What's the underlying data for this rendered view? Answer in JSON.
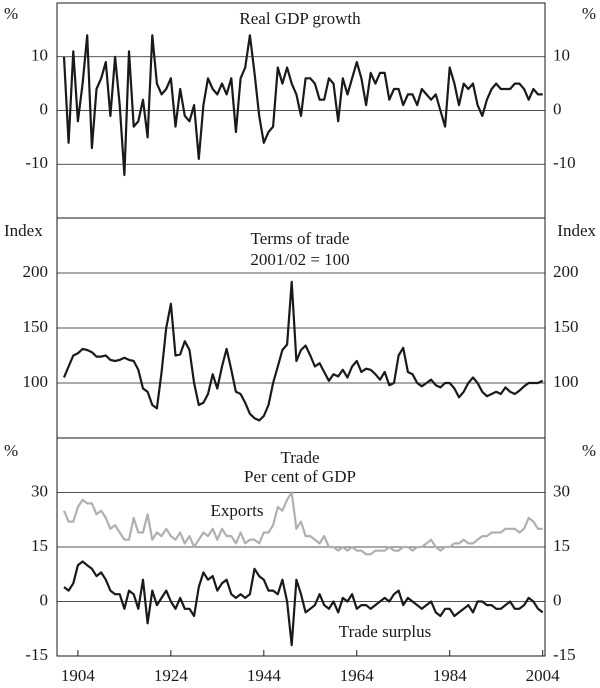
{
  "chart_data": [
    {
      "type": "line",
      "title": "Real GDP growth",
      "y_unit": "%",
      "x": [
        1901,
        1902,
        1903,
        1904,
        1905,
        1906,
        1907,
        1908,
        1909,
        1910,
        1911,
        1912,
        1913,
        1914,
        1915,
        1916,
        1917,
        1918,
        1919,
        1920,
        1921,
        1922,
        1923,
        1924,
        1925,
        1926,
        1927,
        1928,
        1929,
        1930,
        1931,
        1932,
        1933,
        1934,
        1935,
        1936,
        1937,
        1938,
        1939,
        1940,
        1941,
        1942,
        1943,
        1944,
        1945,
        1946,
        1947,
        1948,
        1949,
        1950,
        1951,
        1952,
        1953,
        1954,
        1955,
        1956,
        1957,
        1958,
        1959,
        1960,
        1961,
        1962,
        1963,
        1964,
        1965,
        1966,
        1967,
        1968,
        1969,
        1970,
        1971,
        1972,
        1973,
        1974,
        1975,
        1976,
        1977,
        1978,
        1979,
        1980,
        1981,
        1982,
        1983,
        1984,
        1985,
        1986,
        1987,
        1988,
        1989,
        1990,
        1991,
        1992,
        1993,
        1994,
        1995,
        1996,
        1997,
        1998,
        1999,
        2000,
        2001,
        2002,
        2003,
        2004
      ],
      "series": [
        {
          "name": "Real GDP growth",
          "color": "#1a1a1a",
          "values": [
            10,
            -6,
            11,
            -2,
            5,
            14,
            -7,
            4,
            6,
            9,
            -1,
            10,
            1,
            -12,
            11,
            -3,
            -2,
            2,
            -5,
            14,
            5,
            3,
            4,
            6,
            -3,
            4,
            -1,
            -2,
            1,
            -9,
            1,
            6,
            4,
            3,
            5,
            3,
            6,
            -4,
            6,
            8,
            14,
            7,
            -1,
            -6,
            -4,
            -3,
            8,
            5,
            8,
            5,
            3,
            -1,
            6,
            6,
            5,
            2,
            2,
            6,
            5,
            -2,
            6,
            3,
            6,
            9,
            6,
            1,
            7,
            5,
            7,
            7,
            2,
            4,
            4,
            1,
            3,
            3,
            1,
            4,
            3,
            2,
            3,
            0,
            -3,
            8,
            5,
            1,
            5,
            4,
            5,
            1,
            -1,
            2,
            4,
            5,
            4,
            4,
            4,
            5,
            5,
            4,
            2,
            4,
            3,
            3
          ]
        }
      ],
      "xlim": [
        1899.5,
        2004.5
      ],
      "ylim": [
        -20,
        20
      ],
      "yticks": [
        -10,
        0,
        10
      ],
      "grid": true
    },
    {
      "type": "line",
      "title": "Terms of trade",
      "subtitle": "2001/02 = 100",
      "y_unit": "Index",
      "x": [
        1901,
        1902,
        1903,
        1904,
        1905,
        1906,
        1907,
        1908,
        1909,
        1910,
        1911,
        1912,
        1913,
        1914,
        1915,
        1916,
        1917,
        1918,
        1919,
        1920,
        1921,
        1922,
        1923,
        1924,
        1925,
        1926,
        1927,
        1928,
        1929,
        1930,
        1931,
        1932,
        1933,
        1934,
        1935,
        1936,
        1937,
        1938,
        1939,
        1940,
        1941,
        1942,
        1943,
        1944,
        1945,
        1946,
        1947,
        1948,
        1949,
        1950,
        1951,
        1952,
        1953,
        1954,
        1955,
        1956,
        1957,
        1958,
        1959,
        1960,
        1961,
        1962,
        1963,
        1964,
        1965,
        1966,
        1967,
        1968,
        1969,
        1970,
        1971,
        1972,
        1973,
        1974,
        1975,
        1976,
        1977,
        1978,
        1979,
        1980,
        1981,
        1982,
        1983,
        1984,
        1985,
        1986,
        1987,
        1988,
        1989,
        1990,
        1991,
        1992,
        1993,
        1994,
        1995,
        1996,
        1997,
        1998,
        1999,
        2000,
        2001,
        2002,
        2003,
        2004
      ],
      "series": [
        {
          "name": "Terms of trade",
          "color": "#1a1a1a",
          "values": [
            105,
            115,
            125,
            127,
            131,
            130,
            128,
            124,
            124,
            125,
            121,
            120,
            121,
            123,
            121,
            120,
            112,
            95,
            92,
            80,
            77,
            110,
            150,
            172,
            125,
            126,
            138,
            130,
            100,
            80,
            82,
            90,
            108,
            95,
            115,
            131,
            112,
            92,
            90,
            82,
            72,
            68,
            66,
            70,
            80,
            100,
            115,
            130,
            135,
            192,
            120,
            130,
            134,
            125,
            115,
            118,
            110,
            102,
            108,
            106,
            112,
            105,
            115,
            120,
            110,
            113,
            112,
            108,
            103,
            110,
            98,
            100,
            125,
            132,
            110,
            108,
            100,
            97,
            100,
            103,
            98,
            96,
            100,
            100,
            95,
            87,
            92,
            100,
            105,
            100,
            92,
            88,
            90,
            92,
            90,
            96,
            92,
            90,
            93,
            97,
            100,
            100,
            100,
            102
          ]
        }
      ],
      "xlim": [
        1899.5,
        2004.5
      ],
      "ylim": [
        50,
        250
      ],
      "yticks": [
        100,
        150,
        200
      ],
      "grid": true
    },
    {
      "type": "line",
      "title": "Trade",
      "subtitle": "Per cent of GDP",
      "y_unit": "%",
      "x": [
        1901,
        1902,
        1903,
        1904,
        1905,
        1906,
        1907,
        1908,
        1909,
        1910,
        1911,
        1912,
        1913,
        1914,
        1915,
        1916,
        1917,
        1918,
        1919,
        1920,
        1921,
        1922,
        1923,
        1924,
        1925,
        1926,
        1927,
        1928,
        1929,
        1930,
        1931,
        1932,
        1933,
        1934,
        1935,
        1936,
        1937,
        1938,
        1939,
        1940,
        1941,
        1942,
        1943,
        1944,
        1945,
        1946,
        1947,
        1948,
        1949,
        1950,
        1951,
        1952,
        1953,
        1954,
        1955,
        1956,
        1957,
        1958,
        1959,
        1960,
        1961,
        1962,
        1963,
        1964,
        1965,
        1966,
        1967,
        1968,
        1969,
        1970,
        1971,
        1972,
        1973,
        1974,
        1975,
        1976,
        1977,
        1978,
        1979,
        1980,
        1981,
        1982,
        1983,
        1984,
        1985,
        1986,
        1987,
        1988,
        1989,
        1990,
        1991,
        1992,
        1993,
        1994,
        1995,
        1996,
        1997,
        1998,
        1999,
        2000,
        2001,
        2002,
        2003,
        2004
      ],
      "series": [
        {
          "name": "Exports",
          "color": "#b0b0b0",
          "values": [
            25,
            22,
            22,
            26,
            28,
            27,
            27,
            24,
            25,
            23,
            20,
            21,
            19,
            17,
            17,
            23,
            19,
            19,
            24,
            17,
            19,
            18,
            20,
            18,
            17,
            19,
            16,
            18,
            15,
            17,
            19,
            18,
            20,
            17,
            20,
            18,
            18,
            16,
            19,
            16,
            17,
            17,
            16,
            19,
            19,
            21,
            26,
            25,
            28,
            30,
            20,
            22,
            18,
            18,
            17,
            16,
            18,
            15,
            15,
            14,
            15,
            14,
            15,
            14,
            14,
            13,
            13,
            14,
            14,
            14,
            15,
            14,
            14,
            15,
            15,
            14,
            15,
            15,
            16,
            17,
            15,
            14,
            15,
            15,
            16,
            16,
            17,
            16,
            16,
            17,
            18,
            18,
            19,
            19,
            19,
            20,
            20,
            20,
            19,
            20,
            23,
            22,
            20,
            20
          ]
        },
        {
          "name": "Trade surplus",
          "color": "#1a1a1a",
          "values": [
            4,
            3,
            5,
            10,
            11,
            10,
            9,
            7,
            8,
            6,
            3,
            2,
            2,
            -2,
            3,
            2,
            -2,
            6,
            -6,
            3,
            -1,
            1,
            3,
            0,
            -2,
            1,
            -2,
            -2,
            -4,
            4,
            8,
            6,
            7,
            3,
            5,
            6,
            2,
            1,
            2,
            1,
            2,
            9,
            7,
            6,
            3,
            3,
            2,
            6,
            0,
            -12,
            6,
            2,
            -3,
            -2,
            -1,
            2,
            -1,
            -2,
            0,
            -3,
            1,
            0,
            2,
            -2,
            -1,
            -1,
            -2,
            -1,
            0,
            1,
            0,
            2,
            3,
            -1,
            1,
            0,
            -1,
            -2,
            -1,
            0,
            -3,
            -4,
            -2,
            -2,
            -4,
            -3,
            -2,
            -1,
            -3,
            0,
            0,
            -1,
            -1,
            -2,
            -2,
            -1,
            0,
            -2,
            -2,
            -1,
            1,
            0,
            -2,
            -3
          ]
        }
      ],
      "xlim": [
        1899.5,
        2004.5
      ],
      "ylim": [
        -15,
        45
      ],
      "yticks": [
        -15,
        0,
        15,
        30
      ],
      "xticks": [
        1904,
        1924,
        1944,
        1964,
        1984,
        2004
      ],
      "grid": true
    }
  ]
}
